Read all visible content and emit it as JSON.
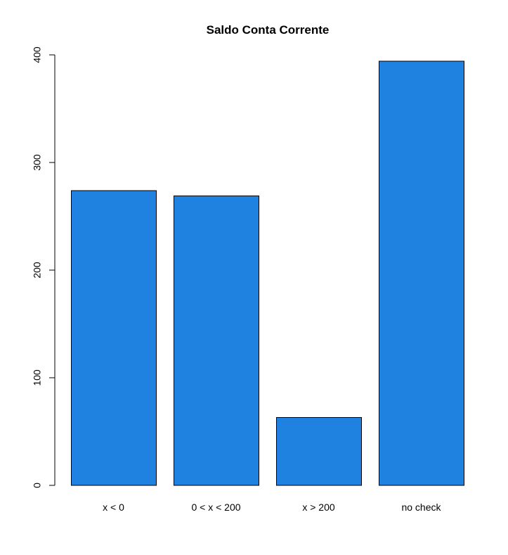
{
  "chart_data": {
    "type": "bar",
    "title": "Saldo Conta Corrente",
    "xlabel": "",
    "ylabel": "",
    "categories": [
      "x < 0",
      "0 < x < 200",
      "x > 200",
      "no check"
    ],
    "values": [
      274,
      269,
      63,
      394
    ],
    "ylim": [
      0,
      400
    ],
    "yticks": [
      0,
      100,
      200,
      300,
      400
    ],
    "ytick_labels": [
      "0",
      "100",
      "200",
      "300",
      "400"
    ],
    "bar_color": "#1f82e0",
    "grid": false,
    "legend": "none"
  }
}
